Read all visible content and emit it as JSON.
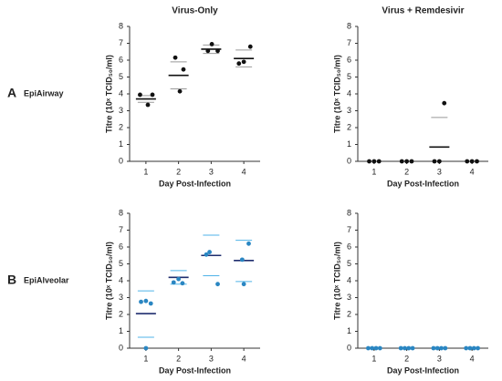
{
  "row_labels": [
    {
      "letter": "A",
      "name": "EpiAirway"
    },
    {
      "letter": "B",
      "name": "EpiAlveolar"
    }
  ],
  "chart_data": [
    {
      "type": "dot",
      "title": "Virus-Only",
      "x_label": "Day Post-Infection",
      "y_label": "Titre (10ˣ TCID₅₀/ml)",
      "xlim": [
        0.5,
        4.5
      ],
      "xticks": [
        1,
        2,
        3,
        4
      ],
      "ylim": [
        0,
        8
      ],
      "yticks": [
        0,
        1,
        2,
        3,
        4,
        5,
        6,
        7,
        8
      ],
      "points": {
        "color": "#111111",
        "x": [
          0.82,
          1.2,
          1.06,
          1.9,
          2.15,
          2.04,
          3.02,
          2.9,
          3.2,
          3.85,
          4.0,
          4.2
        ],
        "y": [
          3.95,
          3.95,
          3.35,
          6.15,
          5.45,
          4.15,
          6.95,
          6.55,
          6.55,
          5.8,
          5.9,
          6.8
        ]
      },
      "mean": {
        "color": "#111111",
        "values": [
          3.7,
          5.1,
          6.65,
          6.1
        ]
      },
      "upper": {
        "color": "#999999",
        "values": [
          3.9,
          5.9,
          6.9,
          6.6
        ]
      },
      "lower": {
        "color": "#999999",
        "values": [
          3.5,
          4.3,
          6.4,
          5.6
        ]
      }
    },
    {
      "type": "dot",
      "title": "Virus + Remdesivir",
      "x_label": "Day Post-Infection",
      "y_label": "Titre (10ˣ TCID₅₀/ml)",
      "xlim": [
        0.5,
        4.5
      ],
      "xticks": [
        1,
        2,
        3,
        4
      ],
      "ylim": [
        0,
        8
      ],
      "yticks": [
        0,
        1,
        2,
        3,
        4,
        5,
        6,
        7,
        8
      ],
      "points": {
        "color": "#111111",
        "x": [
          0.85,
          1.0,
          1.15,
          1.85,
          2.0,
          2.15,
          2.85,
          3.0,
          3.15,
          3.85,
          4.0,
          4.15
        ],
        "y": [
          0,
          0,
          0,
          0,
          0,
          0,
          0,
          0,
          3.45,
          0,
          0,
          0
        ]
      },
      "mean": {
        "color": "#111111",
        "values": [
          null,
          null,
          0.85,
          null
        ]
      },
      "upper": {
        "color": "#999999",
        "values": [
          null,
          null,
          2.6,
          null
        ]
      }
    },
    {
      "type": "dot",
      "x_label": "Day Post-Infection",
      "y_label": "Titre (10ˣ TCID₅₀/ml)",
      "xlim": [
        0.5,
        4.5
      ],
      "xticks": [
        1,
        2,
        3,
        4
      ],
      "ylim": [
        0,
        8
      ],
      "yticks": [
        0,
        1,
        2,
        3,
        4,
        5,
        6,
        7,
        8
      ],
      "points": {
        "color": "#2a86c2",
        "x": [
          0.85,
          1.0,
          1.15,
          1.0,
          1.85,
          2.0,
          2.12,
          2.95,
          2.85,
          3.2,
          4.15,
          3.95,
          4.0
        ],
        "y": [
          2.75,
          2.8,
          2.65,
          0,
          3.9,
          4.1,
          3.85,
          5.7,
          5.55,
          3.8,
          6.2,
          5.25,
          3.8
        ]
      },
      "mean": {
        "color": "#1f2d6e",
        "values": [
          2.05,
          4.2,
          5.5,
          5.2
        ]
      },
      "upper": {
        "color": "#4fb3e8",
        "values": [
          3.4,
          4.6,
          6.7,
          6.4
        ]
      },
      "lower": {
        "color": "#4fb3e8",
        "values": [
          0.65,
          3.8,
          4.3,
          3.95
        ]
      }
    },
    {
      "type": "dot",
      "x_label": "Day Post-Infection",
      "y_label": "Titre (10ˣ TCID₅₀/ml)",
      "xlim": [
        0.5,
        4.5
      ],
      "xticks": [
        1,
        2,
        3,
        4
      ],
      "ylim": [
        0,
        8
      ],
      "yticks": [
        0,
        1,
        2,
        3,
        4,
        5,
        6,
        7,
        8
      ],
      "points": {
        "color": "#2a86c2",
        "x": [
          0.82,
          0.94,
          1.06,
          1.18,
          1.82,
          1.94,
          2.06,
          2.18,
          2.82,
          2.94,
          3.06,
          3.18,
          3.82,
          3.94,
          4.06,
          4.18
        ],
        "y": [
          0,
          0,
          0,
          0,
          0,
          0,
          0,
          0,
          0,
          0,
          0,
          0,
          0,
          0,
          0,
          0
        ]
      }
    }
  ]
}
